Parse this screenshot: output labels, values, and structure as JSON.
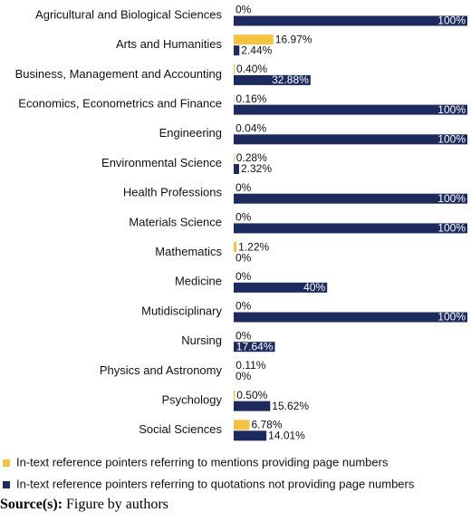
{
  "chart_data": {
    "type": "hbar",
    "categories": [
      "Agricultural and Biological Sciences",
      "Arts and Humanities",
      "Business, Management and Accounting",
      "Economics, Econometrics and Finance",
      "Engineering",
      "Environmental Science",
      "Health Professions",
      "Materials Science",
      "Mathematics",
      "Medicine",
      "Mutidisciplinary",
      "Nursing",
      "Physics and Astronomy",
      "Psychology",
      "Social Sciences"
    ],
    "series": [
      {
        "name": "In-text reference pointers referring to mentions providing page numbers",
        "color": "#f5c342",
        "values": [
          0,
          16.97,
          0.4,
          0.16,
          0.04,
          0.28,
          0,
          0,
          1.22,
          0,
          0,
          0,
          0.11,
          0.5,
          6.78
        ],
        "value_labels": [
          "0%",
          "16.97%",
          "0.40%",
          "0.16%",
          "0.04%",
          "0.28%",
          "0%",
          "0%",
          "1.22%",
          "0%",
          "0%",
          "0%",
          "0.11%",
          "0.50%",
          "6.78%"
        ]
      },
      {
        "name": "In-text reference pointers referring to quotations not providing page numbers",
        "color": "#1c2a5e",
        "values": [
          100,
          2.44,
          32.88,
          100,
          100,
          2.32,
          100,
          100,
          0,
          40,
          100,
          17.64,
          0,
          15.62,
          14.01
        ],
        "value_labels": [
          "100%",
          "2.44%",
          "32.88%",
          "100%",
          "100%",
          "2.32%",
          "100%",
          "100%",
          "0%",
          "40%",
          "100%",
          "17.64%",
          "0%",
          "15.62%",
          "14.01%"
        ]
      }
    ],
    "xlim": [
      0,
      100
    ],
    "legend": "bottom"
  },
  "source": {
    "label": "Source(s):",
    "text": "Figure by authors"
  }
}
